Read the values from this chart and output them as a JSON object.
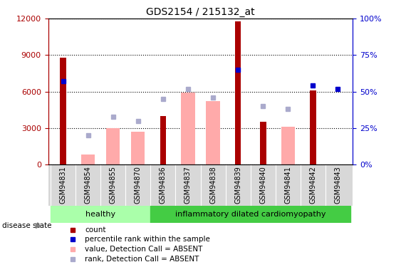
{
  "title": "GDS2154 / 215132_at",
  "samples": [
    "GSM94831",
    "GSM94854",
    "GSM94855",
    "GSM94870",
    "GSM94836",
    "GSM94837",
    "GSM94838",
    "GSM94839",
    "GSM94840",
    "GSM94841",
    "GSM94842",
    "GSM94843"
  ],
  "healthy_samples": [
    "GSM94831",
    "GSM94854",
    "GSM94855",
    "GSM94870"
  ],
  "inflam_samples": [
    "GSM94836",
    "GSM94837",
    "GSM94838",
    "GSM94839",
    "GSM94840",
    "GSM94841",
    "GSM94842",
    "GSM94843"
  ],
  "count": [
    8800,
    null,
    null,
    null,
    4000,
    null,
    null,
    11800,
    3500,
    null,
    6100,
    null
  ],
  "percentile_rank": [
    57,
    null,
    null,
    null,
    null,
    null,
    null,
    65,
    null,
    null,
    54,
    52
  ],
  "value_absent": [
    null,
    800,
    3000,
    2700,
    null,
    5900,
    5200,
    null,
    null,
    3100,
    null,
    null
  ],
  "rank_absent": [
    null,
    20,
    33,
    30,
    45,
    52,
    46,
    null,
    40,
    38,
    null,
    null
  ],
  "count_color": "#aa0000",
  "percentile_color": "#0000cc",
  "value_absent_color": "#ffaaaa",
  "rank_absent_color": "#aaaacc",
  "ylim_left": [
    0,
    12000
  ],
  "ylim_right": [
    0,
    100
  ],
  "yticks_left": [
    0,
    3000,
    6000,
    9000,
    12000
  ],
  "yticks_right": [
    0,
    25,
    50,
    75,
    100
  ],
  "ytick_labels_right": [
    "0%",
    "25%",
    "50%",
    "75%",
    "100%"
  ],
  "group_color_healthy": "#aaffaa",
  "group_color_inflam": "#44cc44",
  "bar_width": 0.55,
  "marker_size": 5
}
